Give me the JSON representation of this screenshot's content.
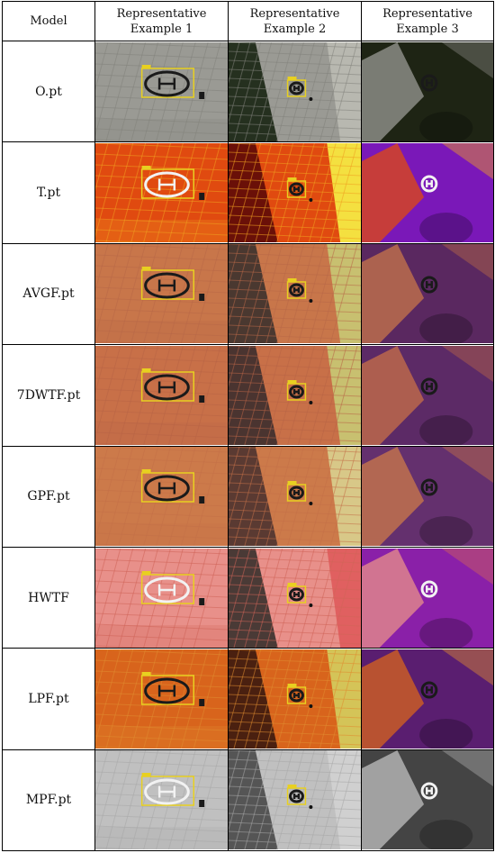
{
  "table": {
    "headers": {
      "model": "Model",
      "ex1_line1": "Representative",
      "ex1_line2": "Example 1",
      "ex2_line1": "Representative",
      "ex2_line2": "Example 2",
      "ex3_line1": "Representative",
      "ex3_line2": "Example 3"
    },
    "rows": [
      {
        "model": "O.pt",
        "palette": {
          "ground": "#9a9a94",
          "tile": "#82827c",
          "veg": "#25301f",
          "side": "#b8b8b0",
          "dark": "#1e2414"
        }
      },
      {
        "model": "T.pt",
        "palette": {
          "ground": "#e04a10",
          "tile": "#f0a020",
          "veg": "#6a1008",
          "side": "#f4e040",
          "dark": "#7a18b8"
        }
      },
      {
        "model": "AVGF.pt",
        "palette": {
          "ground": "#c8764a",
          "tile": "#b86848",
          "veg": "#4a3830",
          "side": "#c8c070",
          "dark": "#5a2860"
        }
      },
      {
        "model": "7DWTF.pt",
        "palette": {
          "ground": "#c87048",
          "tile": "#b86446",
          "veg": "#4a3430",
          "side": "#c8c070",
          "dark": "#5c2a66"
        }
      },
      {
        "model": "GPF.pt",
        "palette": {
          "ground": "#cc7a4a",
          "tile": "#c47048",
          "veg": "#5a3a32",
          "side": "#d8c888",
          "dark": "#64306e"
        }
      },
      {
        "model": "HWTF",
        "palette": {
          "ground": "#e8908a",
          "tile": "#d06458",
          "veg": "#4a3a36",
          "side": "#e06060",
          "dark": "#8a20a8"
        }
      },
      {
        "model": "LPF.pt",
        "palette": {
          "ground": "#d8641c",
          "tile": "#e08c30",
          "veg": "#4a2010",
          "side": "#d4c458",
          "dark": "#5a1e70"
        }
      },
      {
        "model": "MPF.pt",
        "palette": {
          "ground": "#c0c0c0",
          "tile": "#a8a8a8",
          "veg": "#555555",
          "side": "#d0d0d0",
          "dark": "#444444"
        }
      }
    ],
    "colors": {
      "bbox": "#e8d020",
      "helipad": "#1a1a1a"
    }
  }
}
